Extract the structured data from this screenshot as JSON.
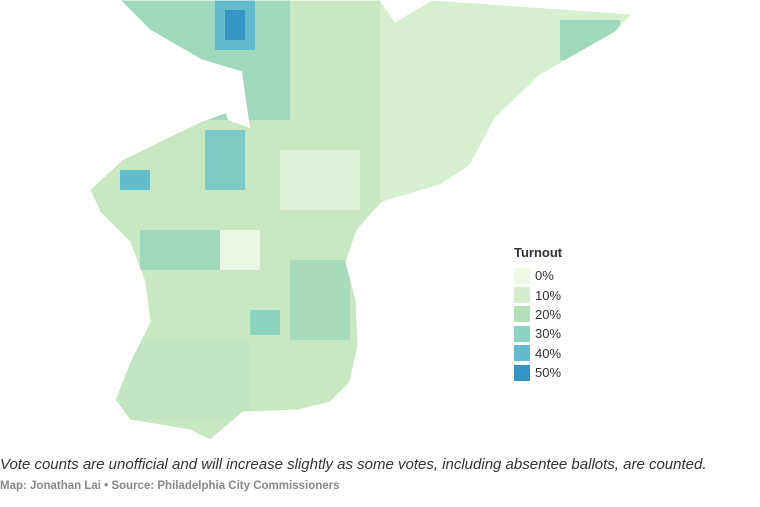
{
  "legend": {
    "title": "Turnout",
    "items": [
      {
        "label": "0%",
        "color": "#f0f9e8"
      },
      {
        "label": "10%",
        "color": "#d4eecb"
      },
      {
        "label": "20%",
        "color": "#b4e0b8"
      },
      {
        "label": "30%",
        "color": "#8dd3c0"
      },
      {
        "label": "40%",
        "color": "#62bccb"
      },
      {
        "label": "50%",
        "color": "#3795c4"
      }
    ]
  },
  "note": "Vote counts are unofficial and will increase slightly as some votes, including absentee ballots, are counted.",
  "credit": "Map: Jonathan Lai • Source: Philadelphia City Commissioners"
}
